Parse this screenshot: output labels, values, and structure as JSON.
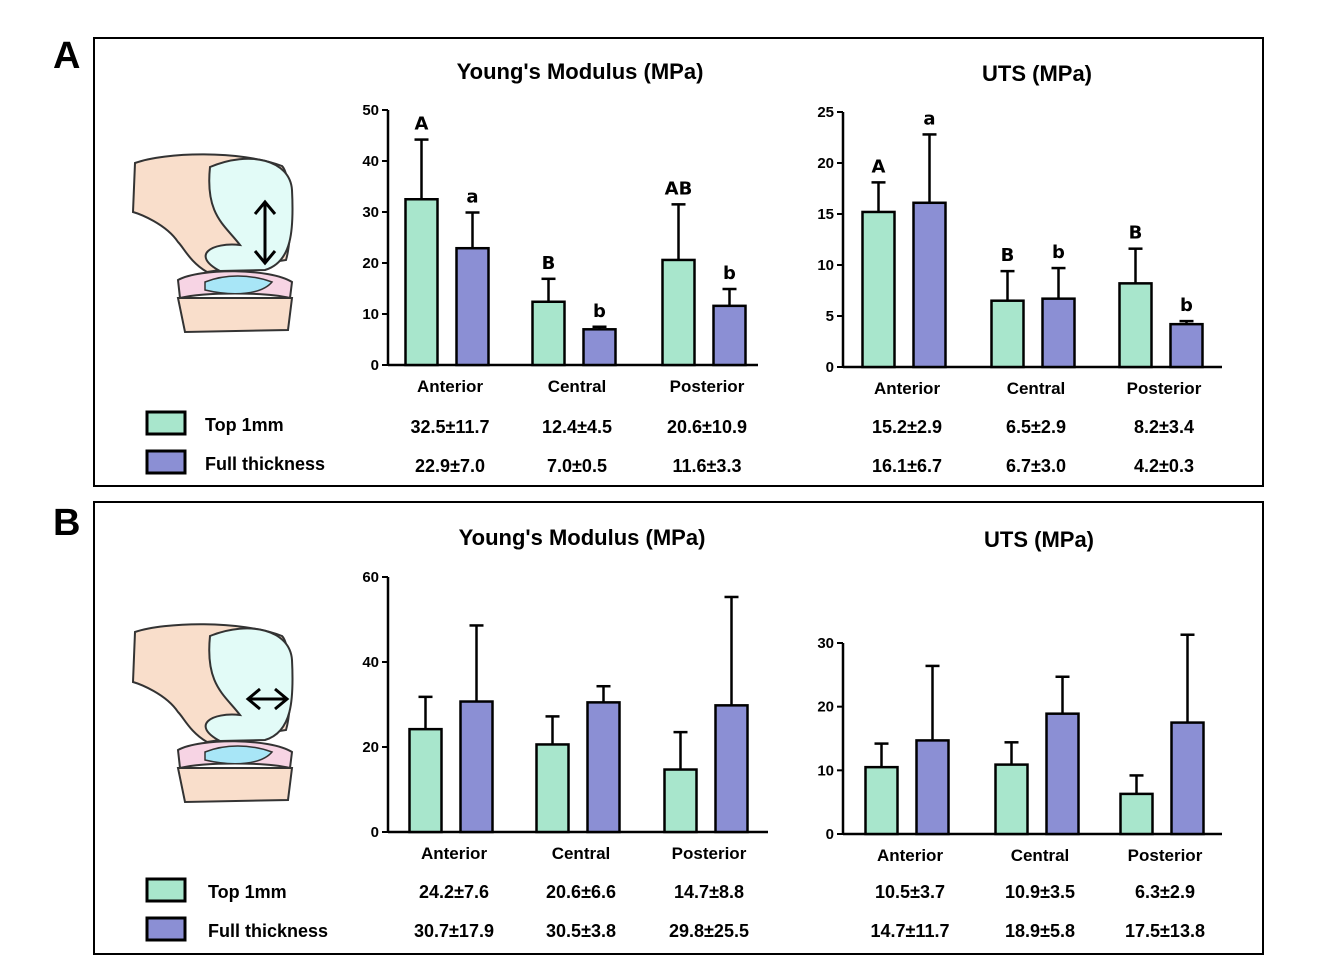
{
  "figure": {
    "panels": [
      {
        "letter": "A",
        "direction": "vertical"
      },
      {
        "letter": "B",
        "direction": "horizontal"
      }
    ],
    "legend": {
      "top_label": "Top 1mm",
      "full_label": "Full thickness",
      "top_color": "#A8E6CC",
      "full_color": "#8B8FD4"
    }
  },
  "chart_data": [
    {
      "panel": "A",
      "type": "bar",
      "title": "Young's Modulus (MPa)",
      "categories": [
        "Anterior",
        "Central",
        "Posterior"
      ],
      "ylim": [
        0,
        50
      ],
      "yticks": [
        0,
        10,
        20,
        30,
        40,
        50
      ],
      "ytick_labels": [
        "0",
        "10",
        "20",
        "30",
        "40",
        "50"
      ],
      "series": [
        {
          "name": "Top 1mm",
          "values": [
            32.5,
            12.4,
            20.6
          ],
          "errors": [
            11.7,
            4.5,
            10.9
          ],
          "labels": [
            "A",
            "B",
            "AB"
          ],
          "table": [
            "32.5±11.7",
            "12.4±4.5",
            "20.6±10.9"
          ]
        },
        {
          "name": "Full thickness",
          "values": [
            22.9,
            7.0,
            11.6
          ],
          "errors": [
            7.0,
            0.5,
            3.3
          ],
          "labels": [
            "a",
            "b",
            "b"
          ],
          "table": [
            "22.9±7.0",
            "7.0±0.5",
            "11.6±3.3"
          ]
        }
      ]
    },
    {
      "panel": "A",
      "type": "bar",
      "title": "UTS (MPa)",
      "categories": [
        "Anterior",
        "Central",
        "Posterior"
      ],
      "ylim": [
        0,
        25
      ],
      "yticks": [
        0,
        5,
        10,
        15,
        20,
        25
      ],
      "ytick_labels": [
        "0",
        "5",
        "10",
        "15",
        "20",
        "25"
      ],
      "series": [
        {
          "name": "Top 1mm",
          "values": [
            15.2,
            6.5,
            8.2
          ],
          "errors": [
            2.9,
            2.9,
            3.4
          ],
          "labels": [
            "A",
            "B",
            "B"
          ],
          "table": [
            "15.2±2.9",
            "6.5±2.9",
            "8.2±3.4"
          ]
        },
        {
          "name": "Full thickness",
          "values": [
            16.1,
            6.7,
            4.2
          ],
          "errors": [
            6.7,
            3.0,
            0.3
          ],
          "labels": [
            "a",
            "b",
            "b"
          ],
          "table": [
            "16.1±6.7",
            "6.7±3.0",
            "4.2±0.3"
          ]
        }
      ]
    },
    {
      "panel": "B",
      "type": "bar",
      "title": "Young's Modulus (MPa)",
      "categories": [
        "Anterior",
        "Central",
        "Posterior"
      ],
      "ylim": [
        0,
        60
      ],
      "yticks": [
        0,
        20,
        40,
        60
      ],
      "ytick_labels": [
        "0",
        "20",
        "40",
        "60"
      ],
      "series": [
        {
          "name": "Top 1mm",
          "values": [
            24.2,
            20.6,
            14.7
          ],
          "errors": [
            7.6,
            6.6,
            8.8
          ],
          "labels": [
            "",
            "",
            ""
          ],
          "table": [
            "24.2±7.6",
            "20.6±6.6",
            "14.7±8.8"
          ]
        },
        {
          "name": "Full thickness",
          "values": [
            30.7,
            30.5,
            29.8
          ],
          "errors": [
            17.9,
            3.8,
            25.5
          ],
          "labels": [
            "",
            "",
            ""
          ],
          "table": [
            "30.7±17.9",
            "30.5±3.8",
            "29.8±25.5"
          ]
        }
      ]
    },
    {
      "panel": "B",
      "type": "bar",
      "title": "UTS (MPa)",
      "categories": [
        "Anterior",
        "Central",
        "Posterior"
      ],
      "ylim": [
        0,
        30
      ],
      "yticks": [
        0,
        10,
        20,
        30
      ],
      "ytick_labels": [
        "0",
        "10",
        "20",
        "30"
      ],
      "series": [
        {
          "name": "Top 1mm",
          "values": [
            10.5,
            10.9,
            6.3
          ],
          "errors": [
            3.7,
            3.5,
            2.9
          ],
          "labels": [
            "",
            "",
            ""
          ],
          "table": [
            "10.5±3.7",
            "10.9±3.5",
            "6.3±2.9"
          ]
        },
        {
          "name": "Full thickness",
          "values": [
            14.7,
            18.9,
            17.5
          ],
          "errors": [
            11.7,
            5.8,
            13.8
          ],
          "labels": [
            "",
            "",
            ""
          ],
          "table": [
            "14.7±11.7",
            "18.9±5.8",
            "17.5±13.8"
          ]
        }
      ]
    }
  ]
}
